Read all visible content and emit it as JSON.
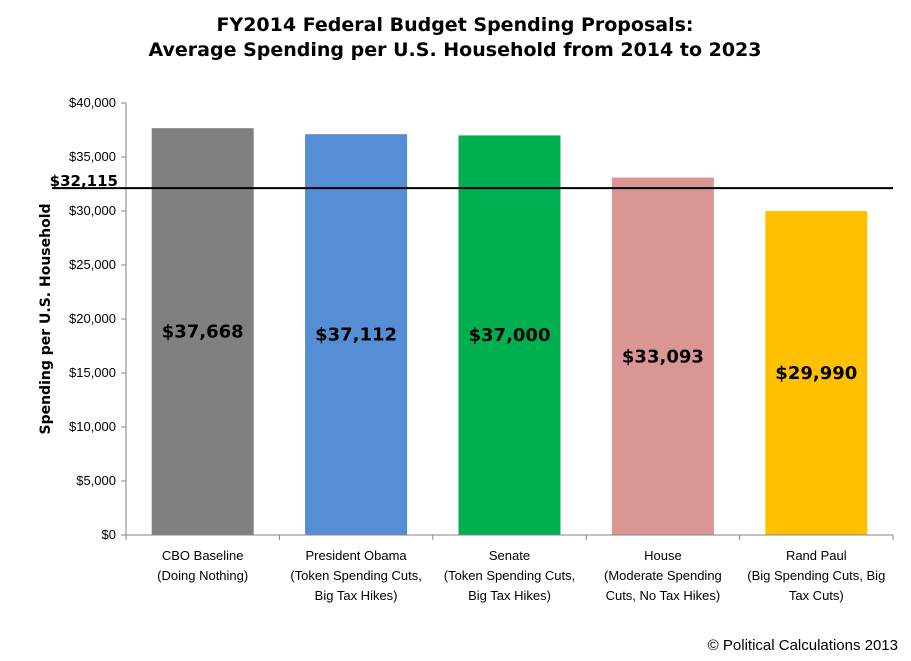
{
  "chart_data": {
    "type": "bar",
    "title": [
      "FY2014 Federal Budget Spending Proposals:",
      "Average Spending per U.S. Household from 2014 to 2023"
    ],
    "ylabel": "Spending per U.S. Household",
    "xlabel": "",
    "ylim": [
      0,
      40000
    ],
    "yticks": [
      0,
      5000,
      10000,
      15000,
      20000,
      25000,
      30000,
      35000,
      40000
    ],
    "ytick_labels": [
      "$0",
      "$5,000",
      "$10,000",
      "$15,000",
      "$20,000",
      "$25,000",
      "$30,000",
      "$35,000",
      "$40,000"
    ],
    "grid": false,
    "categories": [
      [
        "CBO Baseline",
        "(Doing Nothing)"
      ],
      [
        "President Obama",
        "(Token Spending Cuts,",
        "Big Tax Hikes)"
      ],
      [
        "Senate",
        "(Token Spending Cuts,",
        "Big Tax Hikes)"
      ],
      [
        "House",
        "(Moderate Spending",
        "Cuts, No Tax Hikes)"
      ],
      [
        "Rand Paul",
        "(Big Spending Cuts, Big",
        "Tax Cuts)"
      ]
    ],
    "values": [
      37668,
      37112,
      37000,
      33093,
      29990
    ],
    "data_labels": [
      "$37,668",
      "$37,112",
      "$37,000",
      "$33,093",
      "$29,990"
    ],
    "colors": [
      "#808080",
      "#558ed5",
      "#00b050",
      "#d99694",
      "#ffc000"
    ],
    "reference_line": {
      "value": 32115,
      "label": "$32,115",
      "color": "#000000"
    }
  },
  "footer": {
    "copyright": "© Political Calculations 2013"
  }
}
